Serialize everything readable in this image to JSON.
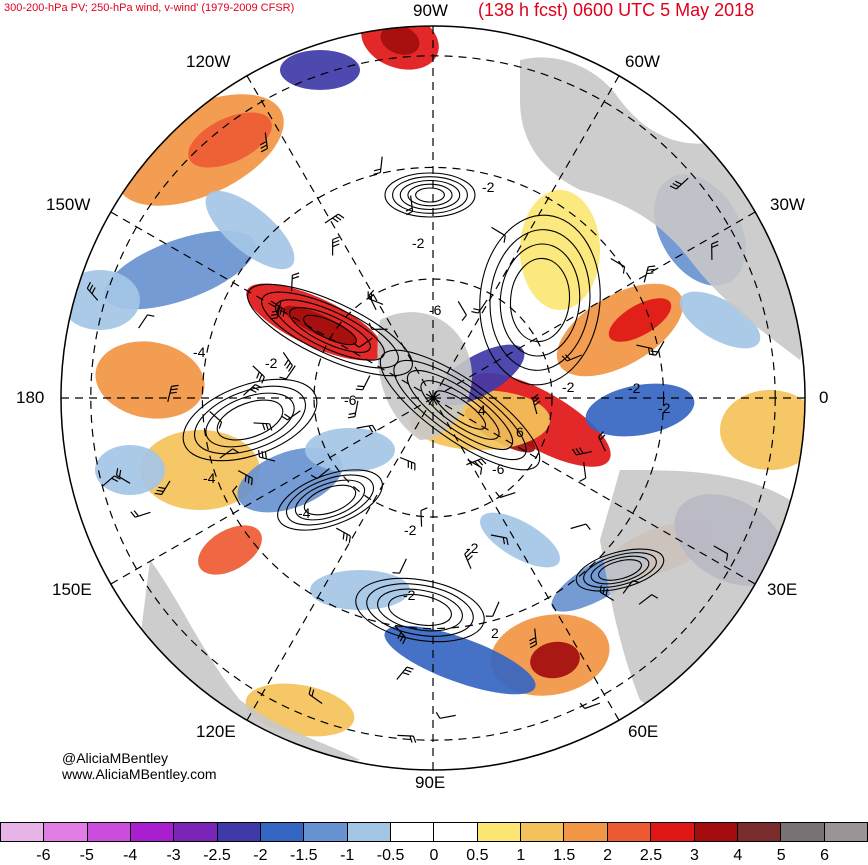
{
  "header": {
    "subtitle": "300-200-hPa PV; 250-hPa wind, v-wind' (1979-2009 CFSR)",
    "title": "(138 h fcst) 0600 UTC 5 May 2018"
  },
  "map": {
    "projection": "north-polar-stereographic",
    "longitude_labels": {
      "top": "90W",
      "upper_left": "120W",
      "upper_right": "60W",
      "left_upper": "150W",
      "right_upper": "30W",
      "left": "180",
      "right": "0",
      "left_lower": "150E",
      "right_lower": "30E",
      "lower_left": "120E",
      "lower_right": "60E",
      "bottom": "90E"
    },
    "contour_labels": [
      "-2",
      "-2",
      "-2",
      "-2",
      "-2",
      "-2",
      "-2",
      "-2",
      "-2",
      "-4",
      "-4",
      "-4",
      "-6",
      "-6",
      "-6",
      "2",
      "4",
      "6"
    ],
    "colors": {
      "land": "#c8c8c8",
      "ocean": "#ffffff",
      "contour": "#000000",
      "grid": "#000000"
    }
  },
  "credit": {
    "handle": "@AliciaMBentley",
    "website": "www.AliciaMBentley.com"
  },
  "colorbar": {
    "colors": [
      "#e8b4e8",
      "#e07ee6",
      "#cc4ddc",
      "#a81fcf",
      "#7a24b8",
      "#3f3aa8",
      "#3566c2",
      "#6892d0",
      "#a4c6e6",
      "#ffffff",
      "#ffffff",
      "#fbe673",
      "#f4c25a",
      "#f29544",
      "#ee5b33",
      "#e01616",
      "#a30d0d",
      "#7a2b2b",
      "#787272",
      "#9b9494"
    ],
    "tick_labels": [
      "-6",
      "-5",
      "-4",
      "-3",
      "-2.5",
      "-2",
      "-1.5",
      "-1",
      "-0.5",
      "0",
      "0.5",
      "1",
      "1.5",
      "2",
      "2.5",
      "3",
      "4",
      "5",
      "6"
    ]
  }
}
